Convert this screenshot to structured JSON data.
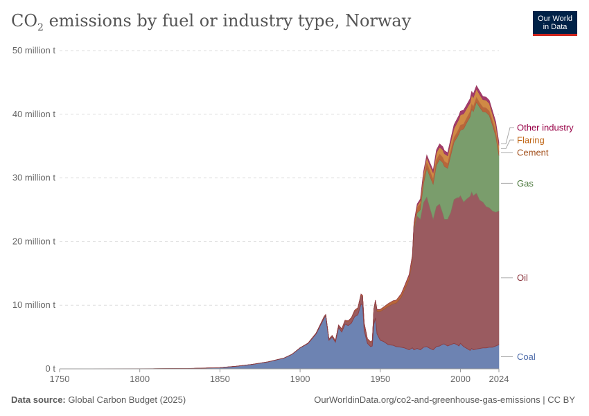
{
  "title": {
    "main": "CO",
    "sub": "2",
    "rest": " emissions by fuel or industry type, Norway"
  },
  "logo": {
    "line1": "Our World",
    "line2": "in Data"
  },
  "footer": {
    "source_label": "Data source:",
    "source_value": " Global Carbon Budget (2025)",
    "url": "OurWorldinData.org/co2-and-greenhouse-gas-emissions | CC BY"
  },
  "chart_data": {
    "type": "area",
    "stacked": true,
    "x_tick_labels": [
      "1750",
      "1800",
      "1850",
      "1900",
      "1950",
      "2000",
      "2024"
    ],
    "x_ticks": [
      1750,
      1800,
      1850,
      1900,
      1950,
      2000,
      2024
    ],
    "y_tick_labels": [
      "0 t",
      "10 million t",
      "20 million t",
      "30 million t",
      "40 million t",
      "50 million t"
    ],
    "y_ticks": [
      0,
      10,
      20,
      30,
      40,
      50
    ],
    "xlim": [
      1750,
      2024
    ],
    "ylim": [
      0,
      50
    ],
    "y_unit": "million t",
    "grid": "horizontal-dashed",
    "legend": "right-inline",
    "x": [
      1750,
      1800,
      1830,
      1850,
      1860,
      1870,
      1880,
      1890,
      1895,
      1900,
      1905,
      1910,
      1913,
      1915,
      1916,
      1918,
      1920,
      1922,
      1924,
      1926,
      1928,
      1930,
      1932,
      1934,
      1936,
      1938,
      1939,
      1940,
      1942,
      1944,
      1945,
      1946,
      1947,
      1948,
      1950,
      1952,
      1955,
      1958,
      1960,
      1963,
      1965,
      1968,
      1970,
      1971,
      1973,
      1975,
      1977,
      1979,
      1981,
      1983,
      1985,
      1987,
      1989,
      1990,
      1992,
      1994,
      1996,
      1998,
      1999,
      2000,
      2002,
      2004,
      2006,
      2007,
      2008,
      2010,
      2012,
      2014,
      2016,
      2018,
      2020,
      2022,
      2024
    ],
    "series": [
      {
        "name": "Coal",
        "color": "#6d83b2",
        "label_color": "#4a69a8",
        "values": [
          0,
          0.01,
          0.05,
          0.2,
          0.4,
          0.7,
          1.1,
          1.7,
          2.3,
          3.3,
          4.0,
          5.5,
          7.0,
          8.0,
          8.3,
          4.5,
          5.0,
          4.2,
          6.5,
          5.8,
          7.0,
          6.8,
          7.2,
          8.2,
          8.5,
          10.2,
          10.0,
          6.0,
          4.0,
          3.5,
          3.6,
          7.0,
          8.0,
          5.5,
          4.5,
          4.3,
          3.8,
          3.7,
          3.5,
          3.4,
          3.3,
          3.0,
          3.3,
          3.0,
          3.2,
          3.0,
          3.4,
          3.5,
          3.2,
          3.0,
          3.5,
          3.6,
          3.9,
          3.9,
          3.6,
          3.8,
          4.0,
          3.8,
          3.6,
          4.0,
          3.5,
          3.2,
          2.9,
          3.2,
          3.0,
          3.1,
          3.2,
          3.3,
          3.3,
          3.4,
          3.4,
          3.6,
          3.8
        ]
      },
      {
        "name": "Oil",
        "color": "#9a5b60",
        "label_color": "#883039",
        "values": [
          0,
          0,
          0,
          0,
          0,
          0,
          0,
          0,
          0,
          0.01,
          0.05,
          0.1,
          0.15,
          0.2,
          0.2,
          0.15,
          0.2,
          0.2,
          0.3,
          0.4,
          0.5,
          0.6,
          0.7,
          0.8,
          0.9,
          1.3,
          1.3,
          1.0,
          0.6,
          0.6,
          0.7,
          2.2,
          2.5,
          3.5,
          4.5,
          5.0,
          6.0,
          6.5,
          6.8,
          7.8,
          9.0,
          11.0,
          13.5,
          18.8,
          20.8,
          20.5,
          22.7,
          23.5,
          22.0,
          20.5,
          22.0,
          22.3,
          20.5,
          19.6,
          19.9,
          20.8,
          22.6,
          23.1,
          23.3,
          23.2,
          22.7,
          23.5,
          24.2,
          24.6,
          24.2,
          24.5,
          23.3,
          22.9,
          22.2,
          21.9,
          21.4,
          21.0,
          21.0
        ]
      },
      {
        "name": "Gas",
        "color": "#7a9d6c",
        "label_color": "#4d7a3f",
        "values": [
          0,
          0,
          0,
          0,
          0,
          0,
          0,
          0,
          0,
          0,
          0,
          0,
          0,
          0,
          0,
          0,
          0,
          0,
          0,
          0,
          0,
          0,
          0,
          0,
          0,
          0,
          0,
          0,
          0,
          0,
          0,
          0,
          0,
          0,
          0,
          0,
          0,
          0,
          0,
          0,
          0,
          0,
          0.1,
          0.2,
          0.5,
          1.5,
          3.0,
          4.5,
          5.0,
          5.5,
          6.5,
          7.0,
          8.0,
          8.3,
          8.0,
          9.0,
          9.0,
          9.5,
          10.0,
          10.3,
          11.5,
          12.0,
          12.5,
          13.0,
          13.2,
          14.3,
          14.6,
          14.2,
          14.8,
          14.5,
          13.5,
          12.0,
          8.7
        ]
      },
      {
        "name": "Cement",
        "color": "#b8663a",
        "label_color": "#a2501c",
        "values": [
          0,
          0,
          0,
          0,
          0,
          0,
          0,
          0,
          0,
          0,
          0.01,
          0.03,
          0.05,
          0.05,
          0.05,
          0.04,
          0.05,
          0.05,
          0.08,
          0.1,
          0.12,
          0.15,
          0.15,
          0.2,
          0.2,
          0.25,
          0.25,
          0.2,
          0.15,
          0.15,
          0.15,
          0.25,
          0.3,
          0.3,
          0.35,
          0.4,
          0.45,
          0.5,
          0.5,
          0.55,
          0.6,
          0.7,
          0.8,
          0.8,
          0.9,
          0.9,
          0.9,
          0.9,
          0.85,
          0.8,
          0.85,
          0.85,
          0.8,
          0.8,
          0.75,
          0.75,
          0.75,
          0.8,
          0.8,
          0.8,
          0.75,
          0.75,
          0.8,
          0.8,
          0.8,
          0.75,
          0.7,
          0.7,
          0.7,
          0.7,
          0.65,
          0.65,
          0.6
        ]
      },
      {
        "name": "Flaring",
        "color": "#d08a45",
        "label_color": "#c06616",
        "values": [
          0,
          0,
          0,
          0,
          0,
          0,
          0,
          0,
          0,
          0,
          0,
          0,
          0,
          0,
          0,
          0,
          0,
          0,
          0,
          0,
          0,
          0,
          0,
          0,
          0,
          0,
          0,
          0,
          0,
          0,
          0,
          0,
          0,
          0,
          0,
          0,
          0,
          0,
          0,
          0,
          0,
          0,
          0,
          0,
          0.2,
          0.5,
          0.7,
          0.8,
          0.9,
          1.0,
          1.1,
          1.1,
          1.2,
          1.2,
          1.2,
          1.3,
          1.4,
          1.5,
          1.5,
          1.6,
          1.6,
          1.5,
          1.4,
          1.4,
          1.4,
          1.3,
          1.3,
          1.2,
          1.2,
          1.2,
          1.1,
          1.1,
          1.0
        ]
      },
      {
        "name": "Other industry",
        "color": "#a23a6c",
        "label_color": "#970046",
        "values": [
          0,
          0,
          0,
          0,
          0,
          0,
          0,
          0,
          0,
          0,
          0,
          0,
          0,
          0,
          0,
          0,
          0,
          0,
          0,
          0,
          0,
          0,
          0,
          0,
          0,
          0,
          0,
          0,
          0,
          0,
          0,
          0,
          0,
          0,
          0,
          0,
          0,
          0,
          0,
          0.05,
          0.1,
          0.15,
          0.2,
          0.2,
          0.3,
          0.3,
          0.3,
          0.4,
          0.4,
          0.4,
          0.45,
          0.5,
          0.5,
          0.5,
          0.5,
          0.55,
          0.6,
          0.6,
          0.6,
          0.6,
          0.6,
          0.6,
          0.65,
          0.6,
          0.6,
          0.55,
          0.55,
          0.5,
          0.5,
          0.5,
          0.5,
          0.5,
          0.5
        ]
      }
    ]
  }
}
